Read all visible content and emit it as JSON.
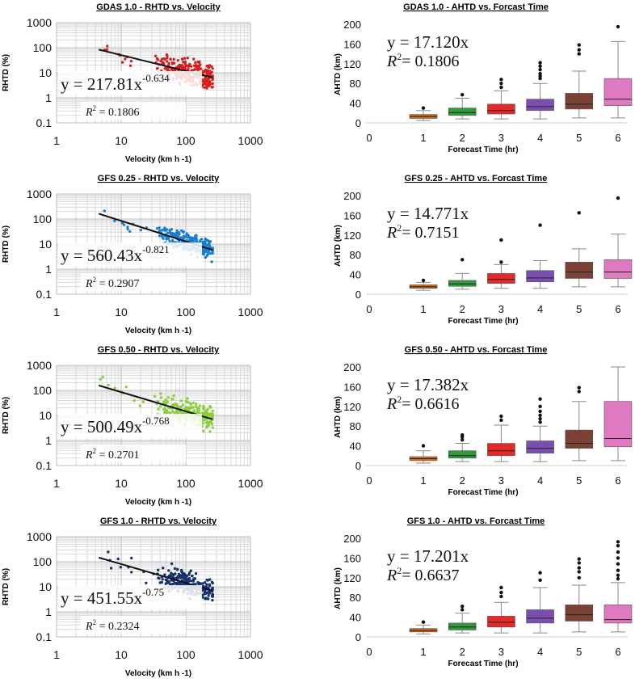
{
  "chart_data": [
    {
      "type": "scatter",
      "title": "GDAS 1.0 - RHTD vs. Velocity",
      "xlabel": "Velocity (km h -1)",
      "ylabel": "RHTD (%)",
      "x_scale": "log",
      "y_scale": "log",
      "xlim": [
        1,
        1000
      ],
      "ylim": [
        0.1,
        1000
      ],
      "xticks": [
        "1",
        "10",
        "100",
        "1000"
      ],
      "yticks": [
        "0.1",
        "1",
        "10",
        "100",
        "1000"
      ],
      "color": "#d42020",
      "fit": {
        "a": 217.81,
        "b": -0.634
      },
      "equation_base": "y = 217.81x",
      "equation_exp": "-0.634",
      "r2_label": "R",
      "r2_value": "= 0.1806",
      "x_range": [
        4.5,
        260
      ],
      "spread": 0.42,
      "n_points": 260
    },
    {
      "type": "box",
      "title": "GDAS 1.0 - AHTD vs. Forcast Time",
      "xlabel": "Forecast Time (hr)",
      "ylabel": "AHTD (km)",
      "ylim": [
        0,
        200
      ],
      "yticks": [
        "0",
        "40",
        "80",
        "120",
        "160",
        "200"
      ],
      "xticks": [
        "0",
        "1",
        "2",
        "3",
        "4",
        "5",
        "6"
      ],
      "equation": "y = 17.120x",
      "r2_label": "R",
      "r2_value": "=  0.1806",
      "boxes": [
        {
          "x": 1,
          "min": 5,
          "q1": 9,
          "median": 13,
          "q3": 17,
          "max": 25,
          "outliers": [
            30
          ],
          "color": "#d06a1a"
        },
        {
          "x": 2,
          "min": 8,
          "q1": 15,
          "median": 21,
          "q3": 30,
          "max": 50,
          "outliers": [
            57
          ],
          "color": "#2e9a3a"
        },
        {
          "x": 3,
          "min": 8,
          "q1": 18,
          "median": 25,
          "q3": 38,
          "max": 65,
          "outliers": [
            72,
            80,
            88
          ],
          "color": "#e52828"
        },
        {
          "x": 4,
          "min": 8,
          "q1": 25,
          "median": 33,
          "q3": 48,
          "max": 80,
          "outliers": [
            90,
            95,
            100,
            108,
            115,
            122
          ],
          "color": "#7a4fb0"
        },
        {
          "x": 5,
          "min": 10,
          "q1": 28,
          "median": 38,
          "q3": 60,
          "max": 105,
          "outliers": [
            140,
            148,
            158
          ],
          "color": "#7b4036"
        },
        {
          "x": 6,
          "min": 10,
          "q1": 35,
          "median": 48,
          "q3": 90,
          "max": 165,
          "outliers": [
            195
          ],
          "color": "#e07ac0"
        }
      ]
    },
    {
      "type": "scatter",
      "title": "GFS 0.25 - RHTD vs. Velocity",
      "xlabel": "Velocity (km h -1)",
      "ylabel": "RHTD (%)",
      "x_scale": "log",
      "y_scale": "log",
      "xlim": [
        1,
        1000
      ],
      "ylim": [
        0.1,
        1000
      ],
      "xticks": [
        "1",
        "10",
        "100",
        "1000"
      ],
      "yticks": [
        "0.1",
        "1",
        "10",
        "100",
        "1000"
      ],
      "color": "#1a7fd0",
      "fit": {
        "a": 560.43,
        "b": -0.821
      },
      "equation_base": "y = 560.43x",
      "equation_exp": "-0.821",
      "r2_label": "R",
      "r2_value": "= 0.2907",
      "x_range": [
        4.5,
        260
      ],
      "spread": 0.32,
      "n_points": 260
    },
    {
      "type": "box",
      "title": "GFS 0.25 - AHTD vs. Forcast Time",
      "xlabel": "Forecast Time (hr)",
      "ylabel": "AHTD (km)",
      "ylim": [
        0,
        200
      ],
      "yticks": [
        "0",
        "40",
        "80",
        "120",
        "160",
        "200"
      ],
      "xticks": [
        "0",
        "1",
        "2",
        "3",
        "4",
        "5",
        "6"
      ],
      "equation": "y = 14.771x",
      "r2_label": "R",
      "r2_value": "= 0.7151",
      "boxes": [
        {
          "x": 1,
          "min": 8,
          "q1": 12,
          "median": 15,
          "q3": 19,
          "max": 24,
          "outliers": [
            28
          ],
          "color": "#d06a1a"
        },
        {
          "x": 2,
          "min": 10,
          "q1": 16,
          "median": 21,
          "q3": 28,
          "max": 42,
          "outliers": [
            70
          ],
          "color": "#2e9a3a"
        },
        {
          "x": 3,
          "min": 12,
          "q1": 22,
          "median": 30,
          "q3": 42,
          "max": 60,
          "outliers": [
            65,
            110
          ],
          "color": "#e52828"
        },
        {
          "x": 4,
          "min": 12,
          "q1": 25,
          "median": 33,
          "q3": 48,
          "max": 68,
          "outliers": [
            140
          ],
          "color": "#7a4fb0"
        },
        {
          "x": 5,
          "min": 15,
          "q1": 32,
          "median": 45,
          "q3": 65,
          "max": 92,
          "outliers": [
            165
          ],
          "color": "#7b4036"
        },
        {
          "x": 6,
          "min": 15,
          "q1": 32,
          "median": 45,
          "q3": 70,
          "max": 122,
          "outliers": [
            195
          ],
          "color": "#e07ac0"
        }
      ]
    },
    {
      "type": "scatter",
      "title": "GFS 0.50 - RHTD vs. Velocity",
      "xlabel": "Velocity (km h -1)",
      "ylabel": "RHTD (%)",
      "x_scale": "log",
      "y_scale": "log",
      "xlim": [
        1,
        1000
      ],
      "ylim": [
        0.1,
        1000
      ],
      "xticks": [
        "1",
        "10",
        "100",
        "1000"
      ],
      "yticks": [
        "0.1",
        "1",
        "10",
        "100",
        "1000"
      ],
      "color": "#8ccf3e",
      "fit": {
        "a": 500.49,
        "b": -0.768
      },
      "equation_base": "y = 500.49x",
      "equation_exp": "-0.768",
      "r2_label": "R",
      "r2_value": "= 0.2701",
      "x_range": [
        4.5,
        260
      ],
      "spread": 0.35,
      "n_points": 260
    },
    {
      "type": "box",
      "title": "GFS 0.50 - AHTD vs. Forcast Time",
      "xlabel": "Forecast Time (hr)",
      "ylabel": "AHTD (km)",
      "ylim": [
        0,
        200
      ],
      "yticks": [
        "0",
        "40",
        "80",
        "120",
        "160",
        "200"
      ],
      "xticks": [
        "0",
        "1",
        "2",
        "3",
        "4",
        "5",
        "6"
      ],
      "equation": "y = 17.382x",
      "r2_label": "R",
      "r2_value": "=  0.6616",
      "boxes": [
        {
          "x": 1,
          "min": 5,
          "q1": 10,
          "median": 14,
          "q3": 18,
          "max": 30,
          "outliers": [
            40
          ],
          "color": "#d06a1a"
        },
        {
          "x": 2,
          "min": 8,
          "q1": 15,
          "median": 20,
          "q3": 30,
          "max": 45,
          "outliers": [
            52,
            58,
            62
          ],
          "color": "#2e9a3a"
        },
        {
          "x": 3,
          "min": 8,
          "q1": 20,
          "median": 30,
          "q3": 45,
          "max": 82,
          "outliers": [
            92,
            100
          ],
          "color": "#e52828"
        },
        {
          "x": 4,
          "min": 8,
          "q1": 25,
          "median": 35,
          "q3": 50,
          "max": 80,
          "outliers": [
            88,
            95,
            102,
            110,
            120,
            135
          ],
          "color": "#7a4fb0"
        },
        {
          "x": 5,
          "min": 10,
          "q1": 35,
          "median": 45,
          "q3": 72,
          "max": 130,
          "outliers": [
            150,
            158
          ],
          "color": "#7b4036"
        },
        {
          "x": 6,
          "min": 10,
          "q1": 38,
          "median": 55,
          "q3": 130,
          "max": 200,
          "outliers": [],
          "color": "#e07ac0"
        }
      ]
    },
    {
      "type": "scatter",
      "title": "GFS 1.0 - RHTD vs. Velocity",
      "xlabel": "Velocity (km h -1)",
      "ylabel": "RHTD (%)",
      "x_scale": "log",
      "y_scale": "log",
      "xlim": [
        1,
        1000
      ],
      "ylim": [
        0.1,
        1000
      ],
      "xticks": [
        "1",
        "10",
        "100",
        "1000"
      ],
      "yticks": [
        "0.1",
        "1",
        "10",
        "100",
        "1000"
      ],
      "color": "#17336e",
      "fit": {
        "a": 451.55,
        "b": -0.75
      },
      "equation_base": "y = 451.55x",
      "equation_exp": "-0.75",
      "r2_label": "R",
      "r2_value": "= 0.2324",
      "x_range": [
        4.5,
        260
      ],
      "spread": 0.4,
      "n_points": 260
    },
    {
      "type": "box",
      "title": "GFS 1.0 - AHTD vs. Forcast Time",
      "xlabel": "Forecast Time (hr)",
      "ylabel": "AHTD (km)",
      "ylim": [
        0,
        200
      ],
      "yticks": [
        "0",
        "40",
        "80",
        "120",
        "160",
        "200"
      ],
      "xticks": [
        "0",
        "1",
        "2",
        "3",
        "4",
        "5",
        "6"
      ],
      "equation": "y = 17.201x",
      "r2_label": "R",
      "r2_value": "= 0.6637",
      "boxes": [
        {
          "x": 1,
          "min": 6,
          "q1": 10,
          "median": 13,
          "q3": 17,
          "max": 24,
          "outliers": [
            30
          ],
          "color": "#d06a1a"
        },
        {
          "x": 2,
          "min": 8,
          "q1": 14,
          "median": 20,
          "q3": 28,
          "max": 48,
          "outliers": [
            55,
            62
          ],
          "color": "#2e9a3a"
        },
        {
          "x": 3,
          "min": 8,
          "q1": 20,
          "median": 30,
          "q3": 42,
          "max": 70,
          "outliers": [
            82,
            90,
            100
          ],
          "color": "#e52828"
        },
        {
          "x": 4,
          "min": 8,
          "q1": 28,
          "median": 38,
          "q3": 55,
          "max": 100,
          "outliers": [
            115,
            130
          ],
          "color": "#7a4fb0"
        },
        {
          "x": 5,
          "min": 10,
          "q1": 32,
          "median": 45,
          "q3": 65,
          "max": 105,
          "outliers": [
            120,
            132,
            140,
            150,
            158
          ],
          "color": "#7b4036"
        },
        {
          "x": 6,
          "min": 10,
          "q1": 28,
          "median": 35,
          "q3": 65,
          "max": 110,
          "outliers": [
            118,
            125,
            135,
            148,
            160,
            172,
            185,
            193
          ],
          "color": "#e07ac0"
        }
      ]
    }
  ]
}
